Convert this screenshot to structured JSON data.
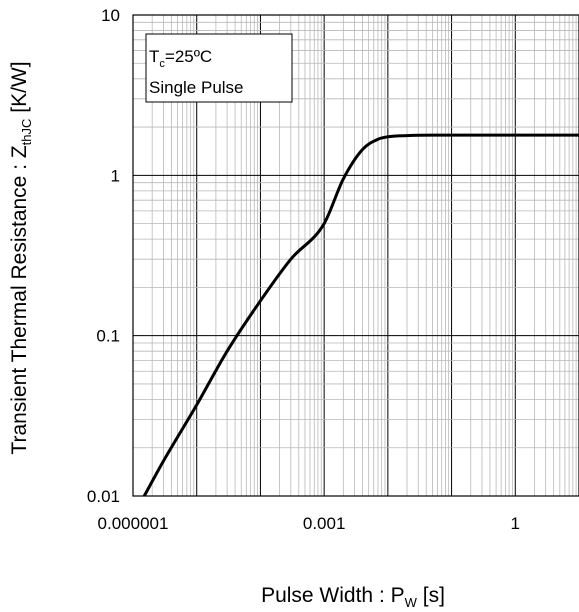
{
  "chart_data": {
    "type": "line",
    "x_scale": "log",
    "y_scale": "log",
    "xlim": [
      1e-06,
      10
    ],
    "ylim": [
      0.01,
      10
    ],
    "grid": true,
    "x_tick_labels": [
      "0.000001",
      "0.001",
      "1"
    ],
    "y_tick_labels": [
      "10",
      "1",
      "0.1",
      "0.01"
    ],
    "x_tick_values": [
      1e-06,
      0.001,
      1
    ],
    "y_tick_values": [
      10,
      1,
      0.1,
      0.01
    ],
    "xlabel": {
      "main": "Pulse Width : P",
      "sub": "W",
      "unit": " [s]"
    },
    "ylabel": {
      "main": "Transient Thermal  Resistance : Z",
      "sub": "thJC",
      "unit": " [K/W]"
    },
    "annotation": {
      "line1_prefix": "T",
      "line1_sub": "c",
      "line1_rest": "=25ºC",
      "line2": "Single Pulse"
    },
    "series": [
      {
        "x": [
          1.5e-06,
          3e-06,
          1e-05,
          3e-05,
          0.0001,
          0.0003,
          0.001,
          0.002,
          0.004,
          0.007,
          0.01,
          0.02,
          0.05,
          0.1,
          1,
          10
        ],
        "y": [
          0.01,
          0.0165,
          0.037,
          0.08,
          0.165,
          0.3,
          0.5,
          0.95,
          1.45,
          1.68,
          1.74,
          1.77,
          1.78,
          1.78,
          1.78,
          1.78
        ]
      }
    ]
  }
}
